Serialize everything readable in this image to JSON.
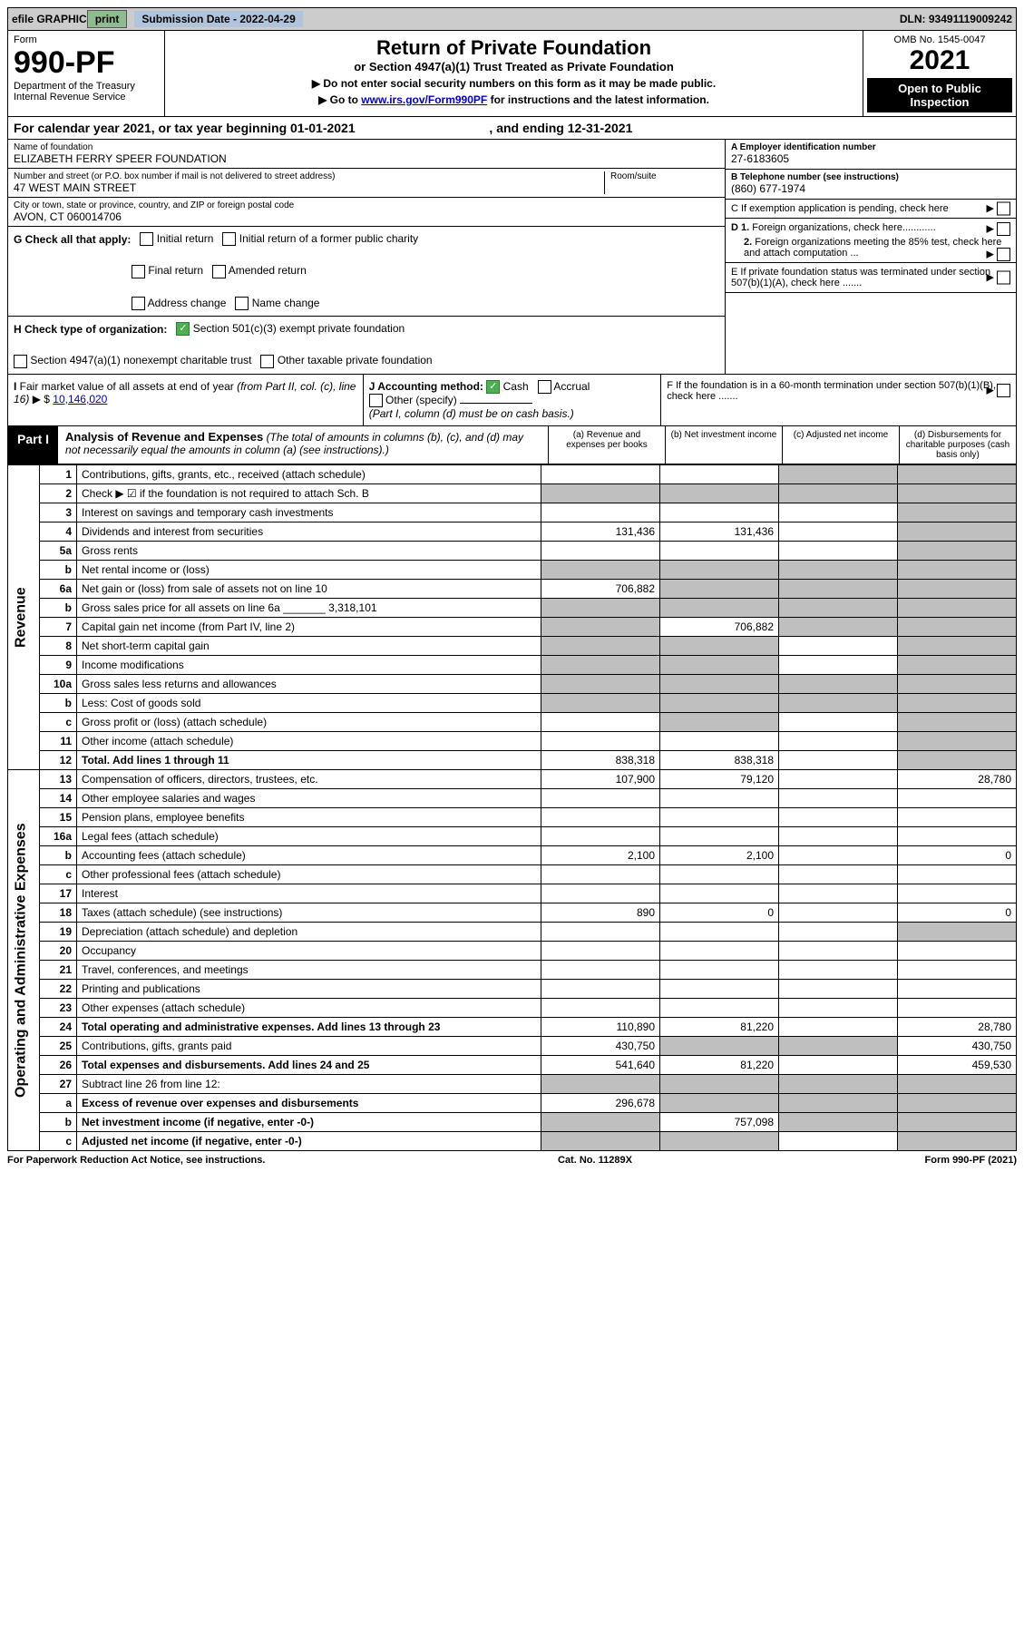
{
  "top": {
    "efile": "efile GRAPHIC",
    "print": "print",
    "sub_label": "Submission Date - 2022-04-29",
    "dln": "DLN: 93491119009242"
  },
  "header": {
    "form_word": "Form",
    "form_no": "990-PF",
    "dept": "Department of the Treasury",
    "irs": "Internal Revenue Service",
    "title": "Return of Private Foundation",
    "subtitle": "or Section 4947(a)(1) Trust Treated as Private Foundation",
    "note1": "▶ Do not enter social security numbers on this form as it may be made public.",
    "note2": "▶ Go to www.irs.gov/Form990PF for instructions and the latest information.",
    "omb": "OMB No. 1545-0047",
    "year": "2021",
    "open": "Open to Public Inspection"
  },
  "calendar": {
    "text1": "For calendar year 2021, or tax year beginning 01-01-2021",
    "text2": ", and ending 12-31-2021"
  },
  "foundation": {
    "name_label": "Name of foundation",
    "name": "ELIZABETH FERRY SPEER FOUNDATION",
    "addr_label": "Number and street (or P.O. box number if mail is not delivered to street address)",
    "addr": "47 WEST MAIN STREET",
    "room_label": "Room/suite",
    "city_label": "City or town, state or province, country, and ZIP or foreign postal code",
    "city": "AVON, CT  060014706"
  },
  "right_info": {
    "a_label": "A Employer identification number",
    "a_val": "27-6183605",
    "b_label": "B Telephone number (see instructions)",
    "b_val": "(860) 677-1974",
    "c_label": "C If exemption application is pending, check here",
    "d1": "D 1. Foreign organizations, check here............",
    "d2": "2. Foreign organizations meeting the 85% test, check here and attach computation ...",
    "e": "E If private foundation status was terminated under section 507(b)(1)(A), check here .......",
    "f": "F If the foundation is in a 60-month termination under section 507(b)(1)(B), check here .......",
    "arrow": "▶"
  },
  "checks": {
    "g_label": "G Check all that apply:",
    "initial": "Initial return",
    "final": "Final return",
    "address": "Address change",
    "initial_former": "Initial return of a former public charity",
    "amended": "Amended return",
    "name_change": "Name change",
    "h_label": "H Check type of organization:",
    "h_501": "Section 501(c)(3) exempt private foundation",
    "h_4947": "Section 4947(a)(1) nonexempt charitable trust",
    "h_other": "Other taxable private foundation",
    "i_label": "I Fair market value of all assets at end of year (from Part II, col. (c), line 16)",
    "i_val": "10,146,020",
    "i_prefix": "▶ $",
    "j_label": "J Accounting method:",
    "j_cash": "Cash",
    "j_accrual": "Accrual",
    "j_other": "Other (specify)",
    "j_note": "(Part I, column (d) must be on cash basis.)"
  },
  "part1": {
    "label": "Part I",
    "title": "Analysis of Revenue and Expenses",
    "title_note": "(The total of amounts in columns (b), (c), and (d) may not necessarily equal the amounts in column (a) (see instructions).)",
    "col_a": "(a) Revenue and expenses per books",
    "col_b": "(b) Net investment income",
    "col_c": "(c) Adjusted net income",
    "col_d": "(d) Disbursements for charitable purposes (cash basis only)"
  },
  "sections": {
    "revenue": "Revenue",
    "expenses": "Operating and Administrative Expenses"
  },
  "rows": [
    {
      "n": "1",
      "d": "Contributions, gifts, grants, etc., received (attach schedule)",
      "a": "",
      "b": "",
      "c": "grey",
      "dd": "grey"
    },
    {
      "n": "2",
      "d": "Check ▶ ☑ if the foundation is not required to attach Sch. B",
      "a": "grey",
      "b": "grey",
      "c": "grey",
      "dd": "grey"
    },
    {
      "n": "3",
      "d": "Interest on savings and temporary cash investments",
      "a": "",
      "b": "",
      "c": "",
      "dd": "grey"
    },
    {
      "n": "4",
      "d": "Dividends and interest from securities",
      "a": "131,436",
      "b": "131,436",
      "c": "",
      "dd": "grey"
    },
    {
      "n": "5a",
      "d": "Gross rents",
      "a": "",
      "b": "",
      "c": "",
      "dd": "grey"
    },
    {
      "n": "b",
      "d": "Net rental income or (loss)",
      "a": "grey",
      "b": "grey",
      "c": "grey",
      "dd": "grey"
    },
    {
      "n": "6a",
      "d": "Net gain or (loss) from sale of assets not on line 10",
      "a": "706,882",
      "b": "grey",
      "c": "grey",
      "dd": "grey"
    },
    {
      "n": "b",
      "d": "Gross sales price for all assets on line 6a _______ 3,318,101",
      "a": "grey",
      "b": "grey",
      "c": "grey",
      "dd": "grey"
    },
    {
      "n": "7",
      "d": "Capital gain net income (from Part IV, line 2)",
      "a": "grey",
      "b": "706,882",
      "c": "grey",
      "dd": "grey"
    },
    {
      "n": "8",
      "d": "Net short-term capital gain",
      "a": "grey",
      "b": "grey",
      "c": "",
      "dd": "grey"
    },
    {
      "n": "9",
      "d": "Income modifications",
      "a": "grey",
      "b": "grey",
      "c": "",
      "dd": "grey"
    },
    {
      "n": "10a",
      "d": "Gross sales less returns and allowances",
      "a": "grey",
      "b": "grey",
      "c": "grey",
      "dd": "grey"
    },
    {
      "n": "b",
      "d": "Less: Cost of goods sold",
      "a": "grey",
      "b": "grey",
      "c": "grey",
      "dd": "grey"
    },
    {
      "n": "c",
      "d": "Gross profit or (loss) (attach schedule)",
      "a": "",
      "b": "grey",
      "c": "",
      "dd": "grey"
    },
    {
      "n": "11",
      "d": "Other income (attach schedule)",
      "a": "",
      "b": "",
      "c": "",
      "dd": "grey"
    },
    {
      "n": "12",
      "d": "Total. Add lines 1 through 11",
      "a": "838,318",
      "b": "838,318",
      "c": "",
      "dd": "grey",
      "bold": true
    },
    {
      "n": "13",
      "d": "Compensation of officers, directors, trustees, etc.",
      "a": "107,900",
      "b": "79,120",
      "c": "",
      "dd": "28,780"
    },
    {
      "n": "14",
      "d": "Other employee salaries and wages",
      "a": "",
      "b": "",
      "c": "",
      "dd": ""
    },
    {
      "n": "15",
      "d": "Pension plans, employee benefits",
      "a": "",
      "b": "",
      "c": "",
      "dd": ""
    },
    {
      "n": "16a",
      "d": "Legal fees (attach schedule)",
      "a": "",
      "b": "",
      "c": "",
      "dd": ""
    },
    {
      "n": "b",
      "d": "Accounting fees (attach schedule)",
      "a": "2,100",
      "b": "2,100",
      "c": "",
      "dd": "0"
    },
    {
      "n": "c",
      "d": "Other professional fees (attach schedule)",
      "a": "",
      "b": "",
      "c": "",
      "dd": ""
    },
    {
      "n": "17",
      "d": "Interest",
      "a": "",
      "b": "",
      "c": "",
      "dd": ""
    },
    {
      "n": "18",
      "d": "Taxes (attach schedule) (see instructions)",
      "a": "890",
      "b": "0",
      "c": "",
      "dd": "0"
    },
    {
      "n": "19",
      "d": "Depreciation (attach schedule) and depletion",
      "a": "",
      "b": "",
      "c": "",
      "dd": "grey"
    },
    {
      "n": "20",
      "d": "Occupancy",
      "a": "",
      "b": "",
      "c": "",
      "dd": ""
    },
    {
      "n": "21",
      "d": "Travel, conferences, and meetings",
      "a": "",
      "b": "",
      "c": "",
      "dd": ""
    },
    {
      "n": "22",
      "d": "Printing and publications",
      "a": "",
      "b": "",
      "c": "",
      "dd": ""
    },
    {
      "n": "23",
      "d": "Other expenses (attach schedule)",
      "a": "",
      "b": "",
      "c": "",
      "dd": ""
    },
    {
      "n": "24",
      "d": "Total operating and administrative expenses. Add lines 13 through 23",
      "a": "110,890",
      "b": "81,220",
      "c": "",
      "dd": "28,780",
      "bold": true
    },
    {
      "n": "25",
      "d": "Contributions, gifts, grants paid",
      "a": "430,750",
      "b": "grey",
      "c": "grey",
      "dd": "430,750"
    },
    {
      "n": "26",
      "d": "Total expenses and disbursements. Add lines 24 and 25",
      "a": "541,640",
      "b": "81,220",
      "c": "",
      "dd": "459,530",
      "bold": true
    },
    {
      "n": "27",
      "d": "Subtract line 26 from line 12:",
      "a": "grey",
      "b": "grey",
      "c": "grey",
      "dd": "grey"
    },
    {
      "n": "a",
      "d": "Excess of revenue over expenses and disbursements",
      "a": "296,678",
      "b": "grey",
      "c": "grey",
      "dd": "grey",
      "bold": true
    },
    {
      "n": "b",
      "d": "Net investment income (if negative, enter -0-)",
      "a": "grey",
      "b": "757,098",
      "c": "grey",
      "dd": "grey",
      "bold": true
    },
    {
      "n": "c",
      "d": "Adjusted net income (if negative, enter -0-)",
      "a": "grey",
      "b": "grey",
      "c": "",
      "dd": "grey",
      "bold": true
    }
  ],
  "footer": {
    "left": "For Paperwork Reduction Act Notice, see instructions.",
    "mid": "Cat. No. 11289X",
    "right": "Form 990-PF (2021)"
  },
  "colors": {
    "grey": "#bfbfbf",
    "link": "#0000cc"
  }
}
